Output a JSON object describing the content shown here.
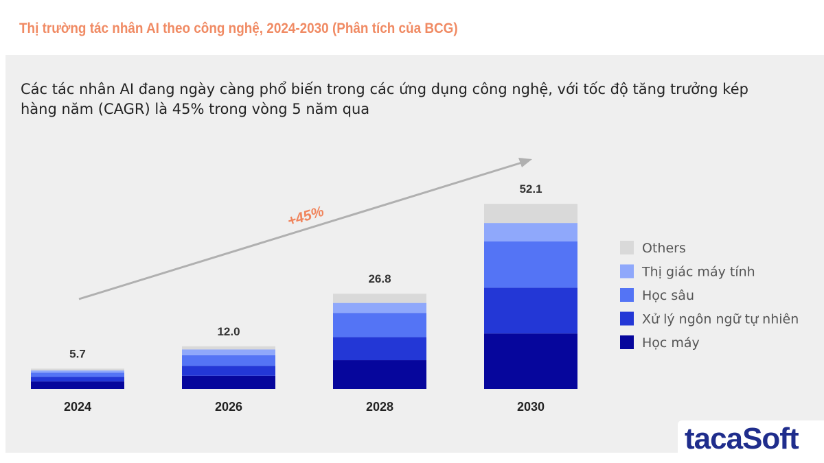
{
  "title": "Thị trường tác nhân AI theo công nghệ, 2024-2030 (Phân tích của BCG)",
  "subtitle": "Các tác nhân AI đang ngày càng phổ biến trong các ứng dụng công nghệ, với tốc độ tăng trưởng kép hàng năm (CAGR) là 45% trong vòng 5 năm qua",
  "logo_text": "tacaSoft",
  "chart_data": {
    "type": "bar",
    "stacked": true,
    "categories": [
      "2024",
      "2026",
      "2028",
      "2030"
    ],
    "totals": [
      "5.7",
      "12.0",
      "26.8",
      "52.1"
    ],
    "series": [
      {
        "name": "Học máy",
        "color": "#06069c",
        "values": [
          2.1,
          3.7,
          8.1,
          15.6
        ]
      },
      {
        "name": "Xử lý ngôn ngữ tự nhiên",
        "color": "#2337d6",
        "values": [
          1.3,
          2.8,
          6.5,
          12.9
        ]
      },
      {
        "name": "Học sâu",
        "color": "#5474f5",
        "values": [
          1.2,
          3.0,
          6.8,
          13.0
        ]
      },
      {
        "name": "Thị giác máy tính",
        "color": "#8fa8fb",
        "values": [
          0.6,
          1.6,
          2.8,
          5.2
        ]
      },
      {
        "name": "Others",
        "color": "#d9d9d9",
        "values": [
          0.5,
          0.9,
          2.6,
          5.4
        ]
      }
    ],
    "legend_order": [
      "Others",
      "Thị giác máy tính",
      "Học sâu",
      "Xử lý ngôn ngữ tự nhiên",
      "Học máy"
    ],
    "annotation": "+45%",
    "annotation_color": "#f0845c",
    "legend_position": "right",
    "grid": false
  }
}
